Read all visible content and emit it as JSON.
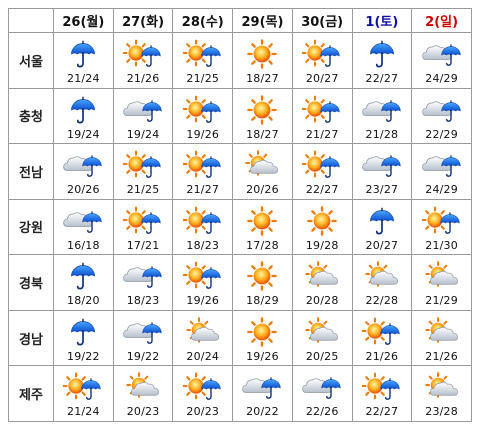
{
  "colors": {
    "saturday": "#1010a0",
    "sunday": "#d00000",
    "border": "#9a9a9a"
  },
  "days": [
    {
      "label": "26(월)",
      "kind": "weekday"
    },
    {
      "label": "27(화)",
      "kind": "weekday"
    },
    {
      "label": "28(수)",
      "kind": "weekday"
    },
    {
      "label": "29(목)",
      "kind": "weekday"
    },
    {
      "label": "30(금)",
      "kind": "weekday"
    },
    {
      "label": "1(토)",
      "kind": "saturday"
    },
    {
      "label": "2(일)",
      "kind": "sunday"
    }
  ],
  "regions": [
    {
      "name": "서울",
      "cells": [
        {
          "icon": "umbrella-icon",
          "temp": "21/24"
        },
        {
          "icon": "sun-umbrella-icon",
          "temp": "21/26"
        },
        {
          "icon": "sun-umbrella-icon",
          "temp": "21/25"
        },
        {
          "icon": "sun-icon",
          "temp": "18/27"
        },
        {
          "icon": "sun-umbrella-icon",
          "temp": "20/27"
        },
        {
          "icon": "umbrella-icon",
          "temp": "22/27"
        },
        {
          "icon": "cloud-umbrella-icon",
          "temp": "24/29"
        }
      ]
    },
    {
      "name": "충청",
      "cells": [
        {
          "icon": "umbrella-icon",
          "temp": "19/24"
        },
        {
          "icon": "cloud-umbrella-icon",
          "temp": "19/24"
        },
        {
          "icon": "sun-umbrella-icon",
          "temp": "19/26"
        },
        {
          "icon": "sun-icon",
          "temp": "18/27"
        },
        {
          "icon": "sun-umbrella-icon",
          "temp": "21/27"
        },
        {
          "icon": "cloud-umbrella-icon",
          "temp": "21/28"
        },
        {
          "icon": "cloud-umbrella-icon",
          "temp": "22/29"
        }
      ]
    },
    {
      "name": "전남",
      "cells": [
        {
          "icon": "cloud-umbrella-icon",
          "temp": "20/26"
        },
        {
          "icon": "sun-umbrella-icon",
          "temp": "21/25"
        },
        {
          "icon": "sun-umbrella-icon",
          "temp": "21/27"
        },
        {
          "icon": "sun-cloud-icon",
          "temp": "20/26"
        },
        {
          "icon": "sun-umbrella-icon",
          "temp": "22/27"
        },
        {
          "icon": "cloud-umbrella-icon",
          "temp": "23/27"
        },
        {
          "icon": "cloud-umbrella-icon",
          "temp": "24/29"
        }
      ]
    },
    {
      "name": "강원",
      "cells": [
        {
          "icon": "cloud-umbrella-icon",
          "temp": "16/18"
        },
        {
          "icon": "sun-umbrella-icon",
          "temp": "17/21"
        },
        {
          "icon": "sun-umbrella-icon",
          "temp": "18/23"
        },
        {
          "icon": "sun-icon",
          "temp": "17/28"
        },
        {
          "icon": "sun-icon",
          "temp": "19/28"
        },
        {
          "icon": "umbrella-icon",
          "temp": "20/27"
        },
        {
          "icon": "sun-umbrella-icon",
          "temp": "21/30"
        }
      ]
    },
    {
      "name": "경북",
      "cells": [
        {
          "icon": "umbrella-icon",
          "temp": "18/20"
        },
        {
          "icon": "cloud-umbrella-icon",
          "temp": "18/23"
        },
        {
          "icon": "sun-umbrella-icon",
          "temp": "19/26"
        },
        {
          "icon": "sun-icon",
          "temp": "18/29"
        },
        {
          "icon": "sun-cloud-icon",
          "temp": "20/28"
        },
        {
          "icon": "sun-cloud-icon",
          "temp": "22/28"
        },
        {
          "icon": "sun-cloud-icon",
          "temp": "21/29"
        }
      ]
    },
    {
      "name": "경남",
      "cells": [
        {
          "icon": "umbrella-icon",
          "temp": "19/22"
        },
        {
          "icon": "cloud-umbrella-icon",
          "temp": "19/22"
        },
        {
          "icon": "sun-cloud-icon",
          "temp": "20/24"
        },
        {
          "icon": "sun-icon",
          "temp": "19/26"
        },
        {
          "icon": "sun-cloud-icon",
          "temp": "20/25"
        },
        {
          "icon": "sun-umbrella-icon",
          "temp": "21/26"
        },
        {
          "icon": "sun-cloud-icon",
          "temp": "21/26"
        }
      ]
    },
    {
      "name": "제주",
      "cells": [
        {
          "icon": "sun-umbrella-icon",
          "temp": "21/24"
        },
        {
          "icon": "sun-cloud-icon",
          "temp": "20/23"
        },
        {
          "icon": "sun-umbrella-icon",
          "temp": "20/23"
        },
        {
          "icon": "cloud-umbrella-icon",
          "temp": "20/22"
        },
        {
          "icon": "cloud-umbrella-icon",
          "temp": "22/26"
        },
        {
          "icon": "sun-umbrella-icon",
          "temp": "22/27"
        },
        {
          "icon": "sun-cloud-icon",
          "temp": "23/28"
        }
      ]
    }
  ]
}
